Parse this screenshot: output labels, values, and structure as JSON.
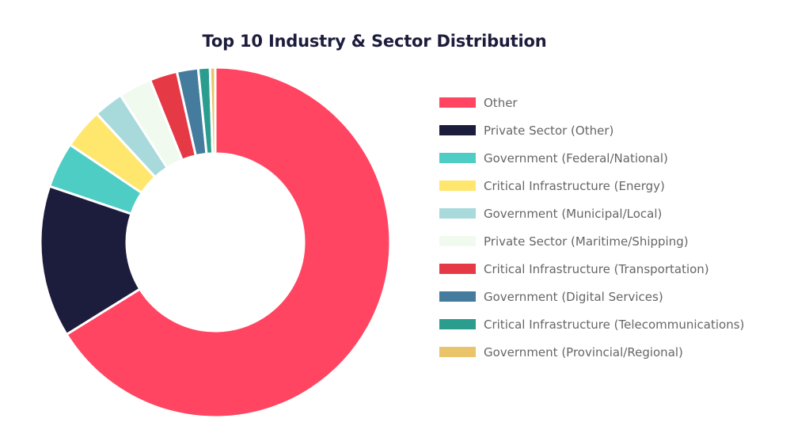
{
  "chart_data": {
    "type": "pie",
    "title": "Top 10 Industry & Sector Distribution",
    "categories": [
      "Other",
      "Private Sector (Other)",
      "Government (Federal/National)",
      "Critical Infrastructure (Energy)",
      "Government (Municipal/Local)",
      "Private Sector (Maritime/Shipping)",
      "Critical Infrastructure (Transportation)",
      "Government (Digital Services)",
      "Critical Infrastructure (Telecommunications)",
      "Government (Provincial/Regional)"
    ],
    "values": [
      67.5,
      14.3,
      4.3,
      3.8,
      2.8,
      3.1,
      2.6,
      2.0,
      1.1,
      0.5
    ],
    "colors": [
      "#ff4562",
      "#1c1c3c",
      "#4ecdc4",
      "#ffe66d",
      "#a8dadc",
      "#f1faee",
      "#e63946",
      "#457b9d",
      "#2a9d8f",
      "#e9c46a"
    ],
    "legend_position": "right",
    "donut": true
  }
}
